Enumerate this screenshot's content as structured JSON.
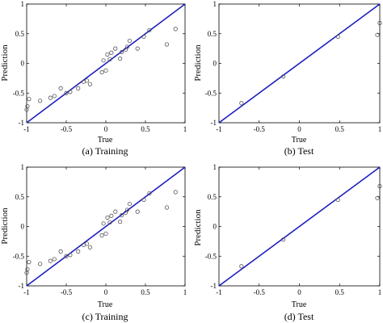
{
  "chart_data": [
    {
      "type": "scatter",
      "caption": "(a)  Training",
      "xlabel": "True",
      "ylabel": "Prediction",
      "xlim": [
        -1,
        1
      ],
      "ylim": [
        -1,
        1
      ],
      "xticks": [
        "-1",
        "-0.5",
        "0",
        "0.5",
        "1"
      ],
      "yticks": [
        "-1",
        "-0.5",
        "0",
        "0.5",
        "1"
      ],
      "reference_line": [
        [
          -1,
          -1
        ],
        [
          1,
          1
        ]
      ],
      "colors": {
        "reference_line": "#1f1fbf",
        "markers": "#555555"
      },
      "x": [
        -1.0,
        -0.99,
        -0.97,
        -0.83,
        -0.7,
        -0.65,
        -0.57,
        -0.5,
        -0.45,
        -0.35,
        -0.28,
        -0.24,
        -0.2,
        -0.05,
        -0.03,
        0.0,
        0.02,
        0.05,
        0.07,
        0.12,
        0.18,
        0.2,
        0.25,
        0.27,
        0.3,
        0.4,
        0.48,
        0.55,
        0.77,
        0.88
      ],
      "y": [
        -0.78,
        -0.72,
        -0.6,
        -0.63,
        -0.58,
        -0.55,
        -0.42,
        -0.5,
        -0.48,
        -0.42,
        -0.31,
        -0.29,
        -0.35,
        -0.15,
        0.05,
        -0.12,
        0.15,
        0.07,
        0.18,
        0.25,
        0.08,
        0.19,
        0.23,
        0.28,
        0.38,
        0.25,
        0.45,
        0.56,
        0.32,
        0.58
      ]
    },
    {
      "type": "scatter",
      "caption": "(b)  Test",
      "xlabel": "True",
      "ylabel": "Prediction",
      "xlim": [
        -1,
        1
      ],
      "ylim": [
        -1,
        1
      ],
      "xticks": [
        "-1",
        "-0.5",
        "0",
        "0.5",
        "1"
      ],
      "yticks": [
        "-1",
        "-0.5",
        "0",
        "0.5",
        "1"
      ],
      "reference_line": [
        [
          -1,
          -1
        ],
        [
          1,
          1
        ]
      ],
      "colors": {
        "reference_line": "#1f1fbf",
        "markers": "#555555"
      },
      "x": [
        -0.72,
        -0.2,
        0.48,
        0.97,
        1.0
      ],
      "y": [
        -0.67,
        -0.22,
        0.45,
        0.48,
        0.68
      ]
    },
    {
      "type": "scatter",
      "caption": "(c)  Training",
      "xlabel": "True",
      "ylabel": "Prediction",
      "xlim": [
        -1,
        1
      ],
      "ylim": [
        -1,
        1
      ],
      "xticks": [
        "-1",
        "-0.5",
        "0",
        "0.5",
        "1"
      ],
      "yticks": [
        "-1",
        "-0.5",
        "0",
        "0.5",
        "1"
      ],
      "reference_line": [
        [
          -1,
          -1
        ],
        [
          1,
          1
        ]
      ],
      "colors": {
        "reference_line": "#1f1fbf",
        "markers": "#555555"
      },
      "x": [
        -1.0,
        -0.99,
        -0.97,
        -0.83,
        -0.7,
        -0.65,
        -0.57,
        -0.5,
        -0.45,
        -0.35,
        -0.28,
        -0.24,
        -0.2,
        -0.05,
        -0.03,
        0.0,
        0.02,
        0.05,
        0.07,
        0.12,
        0.18,
        0.2,
        0.25,
        0.27,
        0.3,
        0.4,
        0.48,
        0.55,
        0.77,
        0.88
      ],
      "y": [
        -0.78,
        -0.72,
        -0.6,
        -0.63,
        -0.58,
        -0.55,
        -0.42,
        -0.5,
        -0.48,
        -0.42,
        -0.31,
        -0.29,
        -0.35,
        -0.15,
        0.05,
        -0.12,
        0.15,
        0.07,
        0.18,
        0.25,
        0.08,
        0.19,
        0.23,
        0.28,
        0.38,
        0.25,
        0.45,
        0.56,
        0.32,
        0.58
      ]
    },
    {
      "type": "scatter",
      "caption": "(d)  Test",
      "xlabel": "True",
      "ylabel": "Prediction",
      "xlim": [
        -1,
        1
      ],
      "ylim": [
        -1,
        1
      ],
      "xticks": [
        "-1",
        "-0.5",
        "0",
        "0.5",
        "1"
      ],
      "yticks": [
        "-1",
        "-0.5",
        "0",
        "0.5",
        "1"
      ],
      "reference_line": [
        [
          -1,
          -1
        ],
        [
          1,
          1
        ]
      ],
      "colors": {
        "reference_line": "#1f1fbf",
        "markers": "#555555"
      },
      "x": [
        -0.72,
        -0.2,
        0.48,
        0.97,
        1.0
      ],
      "y": [
        -0.67,
        -0.22,
        0.45,
        0.48,
        0.68
      ]
    }
  ]
}
